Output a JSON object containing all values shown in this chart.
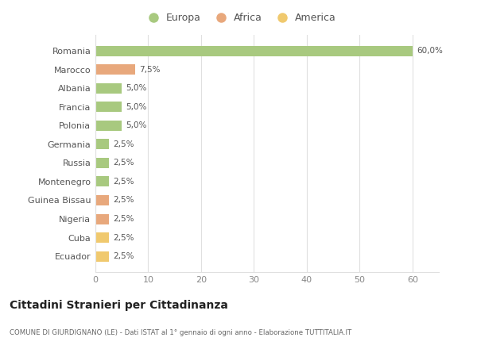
{
  "countries": [
    "Romania",
    "Marocco",
    "Albania",
    "Francia",
    "Polonia",
    "Germania",
    "Russia",
    "Montenegro",
    "Guinea Bissau",
    "Nigeria",
    "Cuba",
    "Ecuador"
  ],
  "values": [
    60.0,
    7.5,
    5.0,
    5.0,
    5.0,
    2.5,
    2.5,
    2.5,
    2.5,
    2.5,
    2.5,
    2.5
  ],
  "labels": [
    "60,0%",
    "7,5%",
    "5,0%",
    "5,0%",
    "5,0%",
    "2,5%",
    "2,5%",
    "2,5%",
    "2,5%",
    "2,5%",
    "2,5%",
    "2,5%"
  ],
  "continents": [
    "Europa",
    "Africa",
    "Europa",
    "Europa",
    "Europa",
    "Europa",
    "Europa",
    "Europa",
    "Africa",
    "Africa",
    "America",
    "America"
  ],
  "colors": {
    "Europa": "#a8c97f",
    "Africa": "#e8a87c",
    "America": "#f0c96e"
  },
  "xlim": [
    0,
    65
  ],
  "xticks": [
    0,
    10,
    20,
    30,
    40,
    50,
    60
  ],
  "title": "Cittadini Stranieri per Cittadinanza",
  "subtitle": "COMUNE DI GIURDIGNANO (LE) - Dati ISTAT al 1° gennaio di ogni anno - Elaborazione TUTTITALIA.IT",
  "bg_color": "#ffffff",
  "grid_color": "#e0e0e0",
  "bar_height": 0.55
}
